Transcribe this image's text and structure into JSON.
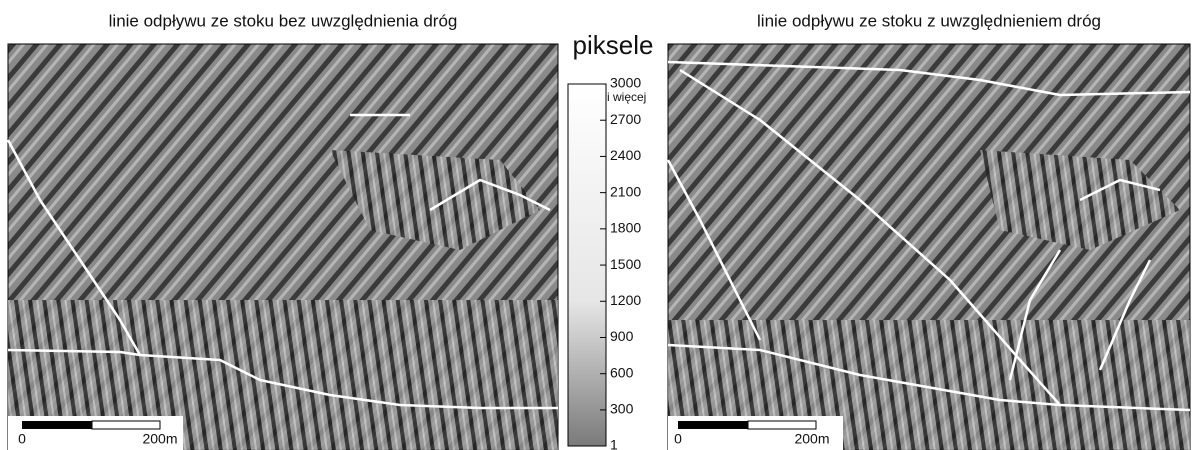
{
  "maps": [
    {
      "title": "linie odpływu ze stoku bez uwzględnienia dróg",
      "scale_bar": {
        "start_label": "0",
        "end_label": "200m"
      }
    },
    {
      "title": "linie odpływu ze stoku z uwzględnieniem dróg",
      "scale_bar": {
        "start_label": "0",
        "end_label": "200m"
      }
    }
  ],
  "legend": {
    "title": "piksele",
    "top_note": "i więcej",
    "range": [
      1,
      3000
    ],
    "ticks": [
      3000,
      2700,
      2400,
      2100,
      1800,
      1500,
      1200,
      900,
      600,
      300,
      1
    ]
  }
}
